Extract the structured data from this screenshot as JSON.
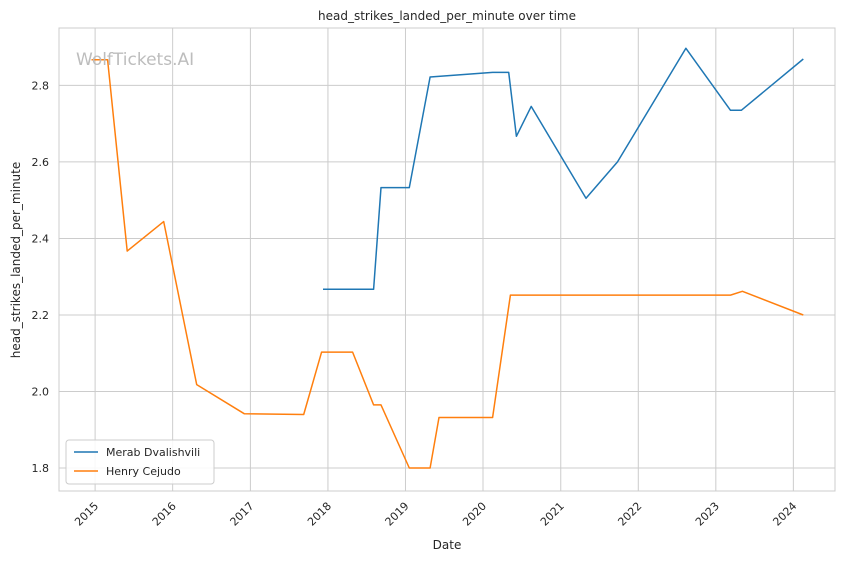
{
  "chart_data": {
    "type": "line",
    "title": "head_strikes_landed_per_minute over time",
    "xlabel": "Date",
    "ylabel": "head_strikes_landed_per_minute",
    "watermark": "WolfTickets.AI",
    "x_ticks": [
      "2015",
      "2016",
      "2017",
      "2018",
      "2019",
      "2020",
      "2021",
      "2022",
      "2023",
      "2024"
    ],
    "y_ticks": [
      "1.8",
      "2.0",
      "2.2",
      "2.4",
      "2.6",
      "2.8"
    ],
    "xlim": [
      "2014-07-15",
      "2024-07-15"
    ],
    "ylim": [
      1.74,
      2.95
    ],
    "grid": true,
    "legend_position": "lower-left",
    "series": [
      {
        "name": "Merab Dvalishvili",
        "color": "#1f77b4",
        "points": [
          [
            "2017-12-09",
            2.267
          ],
          [
            "2018-08-04",
            2.267
          ],
          [
            "2018-09-08",
            2.533
          ],
          [
            "2019-01-19",
            2.533
          ],
          [
            "2019-04-27",
            2.822
          ],
          [
            "2020-02-15",
            2.834
          ],
          [
            "2020-05-01",
            2.834
          ],
          [
            "2020-06-06",
            2.667
          ],
          [
            "2020-08-15",
            2.745
          ],
          [
            "2021-04-30",
            2.505
          ],
          [
            "2021-09-25",
            2.6
          ],
          [
            "2022-08-13",
            2.897
          ],
          [
            "2023-03-11",
            2.735
          ],
          [
            "2023-05-01",
            2.735
          ],
          [
            "2024-02-17",
            2.869
          ]
        ]
      },
      {
        "name": "Henry Cejudo",
        "color": "#ff7f0e",
        "points": [
          [
            "2014-12-15",
            2.867
          ],
          [
            "2015-03-01",
            2.867
          ],
          [
            "2015-06-01",
            2.367
          ],
          [
            "2015-11-20",
            2.444
          ],
          [
            "2016-04-23",
            2.018
          ],
          [
            "2016-12-03",
            1.942
          ],
          [
            "2017-09-09",
            1.94
          ],
          [
            "2017-12-02",
            2.103
          ],
          [
            "2018-04-27",
            2.103
          ],
          [
            "2018-08-04",
            1.965
          ],
          [
            "2018-09-08",
            1.965
          ],
          [
            "2019-01-19",
            1.8
          ],
          [
            "2019-04-27",
            1.8
          ],
          [
            "2019-06-08",
            1.932
          ],
          [
            "2020-02-15",
            1.932
          ],
          [
            "2020-05-09",
            2.252
          ],
          [
            "2023-03-11",
            2.252
          ],
          [
            "2023-05-06",
            2.262
          ],
          [
            "2024-02-17",
            2.2
          ]
        ]
      }
    ]
  }
}
